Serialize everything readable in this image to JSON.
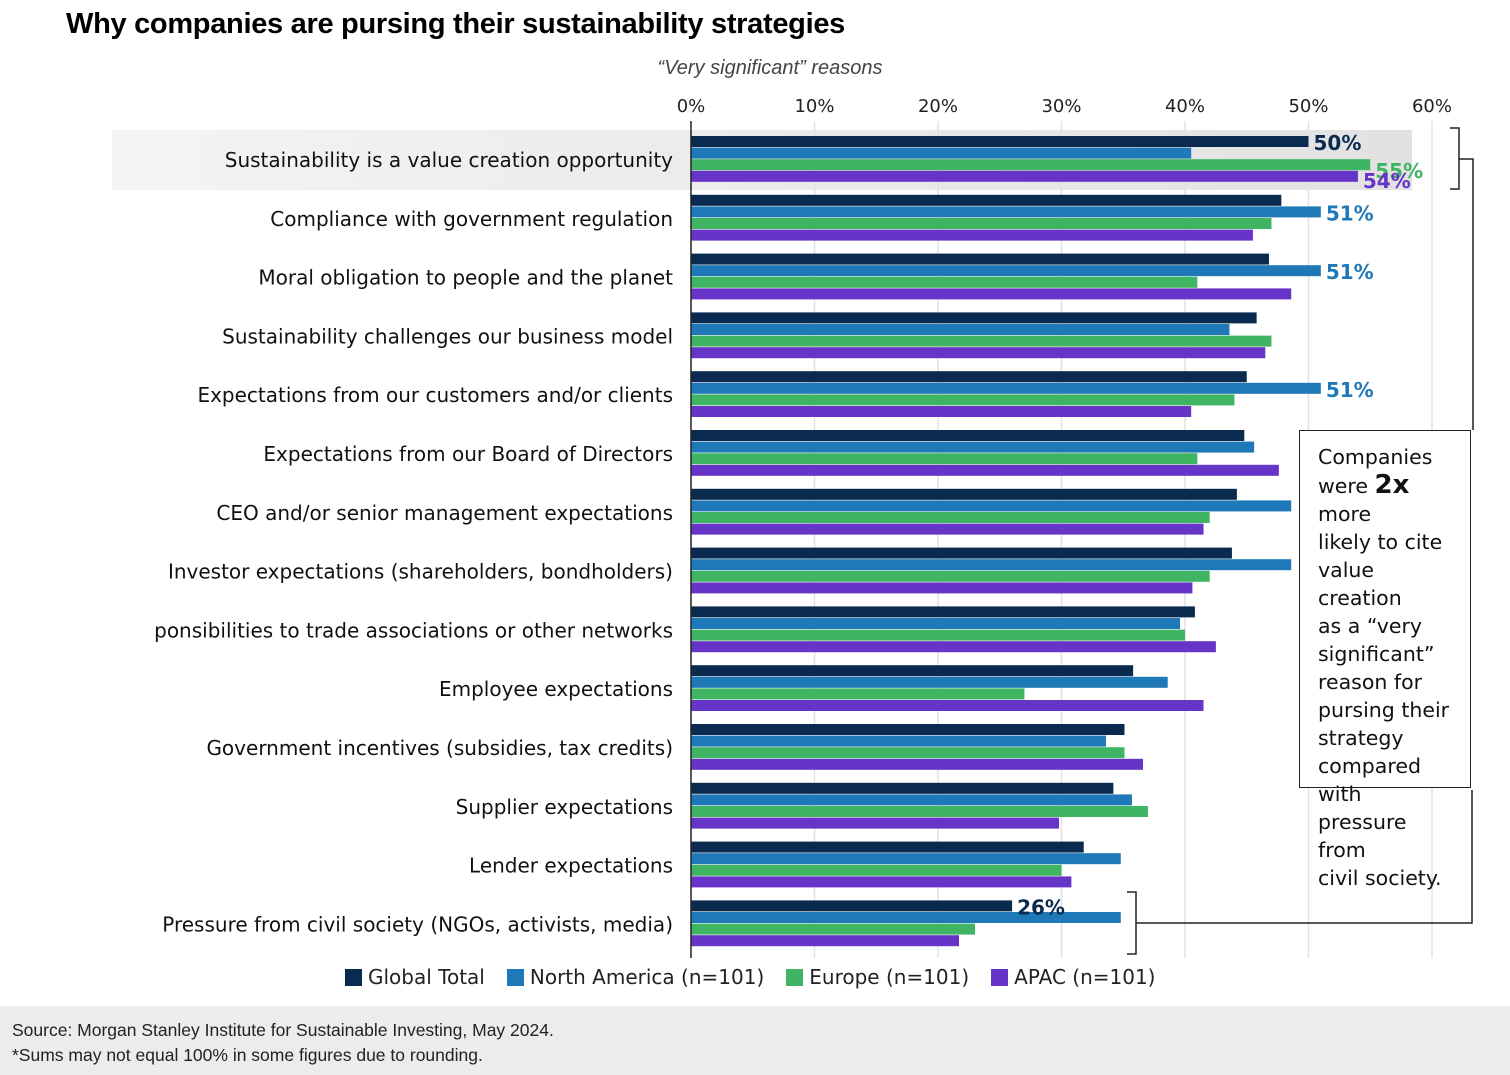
{
  "header": {
    "title": "Why companies are pursing their sustainability strategies",
    "subtitle": "“Very significant” reasons"
  },
  "callout": {
    "line1": "Companies",
    "line2_pre": "were ",
    "line2_bold": "2x",
    "line2_post": " more",
    "rest": [
      "likely to cite",
      "value creation",
      "as a “very",
      "significant”",
      "reason for",
      "pursing their",
      "strategy",
      "compared with",
      "pressure from",
      "civil society."
    ]
  },
  "footer": {
    "source": "Source: Morgan Stanley Institute for Sustainable Investing, May 2024.",
    "note": "*Sums may not equal 100% in some figures due to rounding."
  },
  "chart_data": {
    "type": "bar",
    "orientation": "horizontal",
    "title": "Why companies are pursing their sustainability strategies",
    "subtitle": "“Very significant” reasons",
    "xlabel": "",
    "ylabel": "",
    "xlim": [
      0,
      60
    ],
    "x_ticks": [
      0,
      10,
      20,
      30,
      40,
      50,
      60
    ],
    "x_tick_labels": [
      "0%",
      "10%",
      "20%",
      "30%",
      "40%",
      "50%",
      "60%"
    ],
    "grid": true,
    "legend_position": "bottom",
    "highlighted_category": "Sustainability is a value creation opportunity",
    "categories": [
      "Sustainability is a value creation opportunity",
      "Compliance with government regulation",
      "Moral obligation to people and the planet",
      "Sustainability challenges our business model",
      "Expectations from our customers and/or clients",
      "Expectations from our Board of Directors",
      "CEO and/or senior management expectations",
      "Investor expectations (shareholders, bondholders)",
      "ponsibilities to trade associations or other networks",
      "Employee expectations",
      "Government incentives (subsidies, tax credits)",
      "Supplier expectations",
      "Lender expectations",
      "Pressure from civil society (NGOs, activists, media)"
    ],
    "series": [
      {
        "name": "Global Total",
        "color": "#0b2a4f",
        "values": [
          50,
          47.8,
          46.8,
          45.8,
          45,
          44.8,
          44.2,
          43.8,
          40.8,
          35.8,
          35.1,
          34.2,
          31.8,
          26
        ]
      },
      {
        "name": "North America (n=101)",
        "color": "#1f78b8",
        "values": [
          40.5,
          51,
          51,
          43.6,
          51,
          45.6,
          48.6,
          48.6,
          39.6,
          38.6,
          33.6,
          35.7,
          34.8,
          34.8
        ]
      },
      {
        "name": "Europe (n=101)",
        "color": "#3fb462",
        "values": [
          55,
          47,
          41,
          47,
          44,
          41,
          42,
          42,
          40,
          27,
          35.1,
          37,
          30,
          23
        ]
      },
      {
        "name": "APAC (n=101)",
        "color": "#6634c6",
        "values": [
          54,
          45.5,
          48.6,
          46.5,
          40.5,
          47.6,
          41.5,
          40.6,
          42.5,
          41.5,
          36.6,
          29.8,
          30.8,
          21.7
        ]
      }
    ],
    "annotations": [
      {
        "category_index": 0,
        "series_index": 0,
        "text": "50%"
      },
      {
        "category_index": 0,
        "series_index": 2,
        "text": "55%"
      },
      {
        "category_index": 0,
        "series_index": 3,
        "text": "54%"
      },
      {
        "category_index": 1,
        "series_index": 1,
        "text": "51%"
      },
      {
        "category_index": 2,
        "series_index": 1,
        "text": "51%"
      },
      {
        "category_index": 4,
        "series_index": 1,
        "text": "51%"
      },
      {
        "category_index": 13,
        "series_index": 0,
        "text": "26%"
      }
    ]
  }
}
